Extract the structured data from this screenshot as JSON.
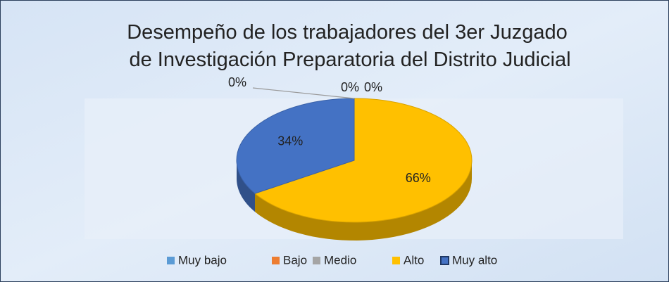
{
  "chart_data": {
    "type": "pie",
    "title": "Desempeño de los trabajadores del 3er Juzgado de Investigación Preparatoria del Distrito Judicial",
    "categories": [
      "Muy bajo",
      "Bajo",
      "Medio",
      "Alto",
      "Muy alto"
    ],
    "values": [
      0,
      0,
      0,
      66,
      34
    ],
    "value_labels": [
      "0%",
      "0%",
      "0%",
      "66%",
      "34%"
    ],
    "colors": [
      "#5b9bd5",
      "#ed7d31",
      "#a5a5a5",
      "#ffc000",
      "#4472c4"
    ],
    "legend": "bottom"
  }
}
